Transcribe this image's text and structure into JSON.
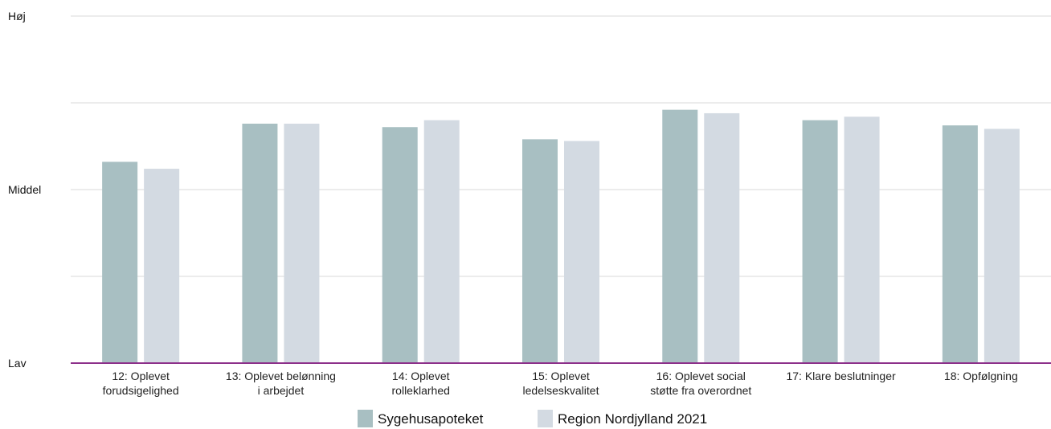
{
  "chart_data": {
    "type": "bar",
    "categories": [
      [
        "12: Oplevet",
        "forudsigelighed"
      ],
      [
        "13: Oplevet belønning",
        "i arbejdet"
      ],
      [
        "14: Oplevet",
        "rolleklarhed"
      ],
      [
        "15: Oplevet",
        "ledelseskvalitet"
      ],
      [
        "16: Oplevet social",
        "støtte fra overordnet"
      ],
      [
        "17: Klare beslutninger"
      ],
      [
        "18: Opfølgning"
      ]
    ],
    "series": [
      {
        "name": "Sygehusapoteket",
        "color": "#a8bfc2",
        "values": [
          58,
          69,
          68,
          64.5,
          73,
          70,
          68.5
        ]
      },
      {
        "name": "Region Nordjylland 2021",
        "color": "#d3dae2",
        "values": [
          56,
          69,
          70,
          64,
          72,
          71,
          67.5
        ]
      }
    ],
    "y_tick_labels": [
      "Lav",
      "Middel",
      "Høj"
    ],
    "y_tick_positions": [
      0,
      50,
      100
    ],
    "ylim": [
      0,
      100
    ],
    "grid": true,
    "legend_position": "bottom"
  }
}
